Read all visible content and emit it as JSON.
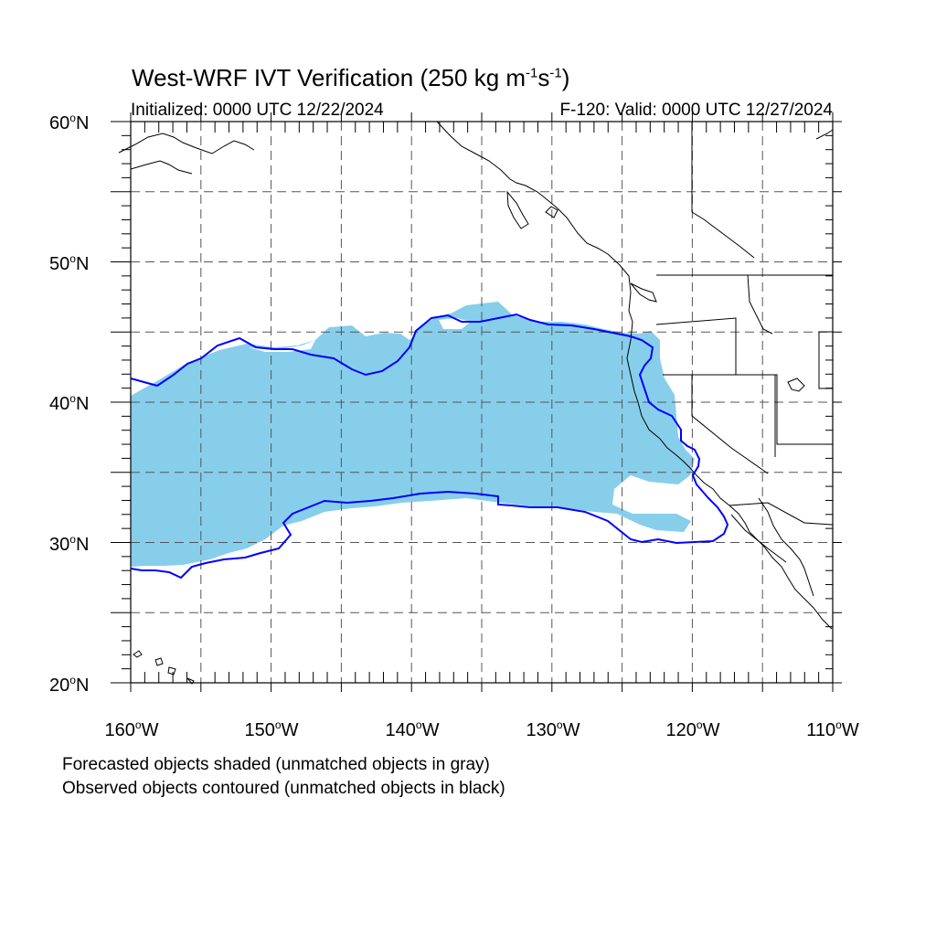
{
  "title": {
    "main": "West-WRF IVT Verification (250 kg m",
    "exp1": "-1",
    "mid": "s",
    "exp2": "-1",
    "end": ")"
  },
  "initialized": "Initialized: 0000 UTC 12/22/2024",
  "valid": "F-120: Valid: 0000 UTC 12/27/2024",
  "lat_labels": [
    {
      "value": "60",
      "hemi": "N"
    },
    {
      "value": "50",
      "hemi": "N"
    },
    {
      "value": "40",
      "hemi": "N"
    },
    {
      "value": "30",
      "hemi": "N"
    },
    {
      "value": "20",
      "hemi": "N"
    }
  ],
  "lon_labels": [
    {
      "value": "160",
      "hemi": "W"
    },
    {
      "value": "150",
      "hemi": "W"
    },
    {
      "value": "140",
      "hemi": "W"
    },
    {
      "value": "130",
      "hemi": "W"
    },
    {
      "value": "120",
      "hemi": "W"
    },
    {
      "value": "110",
      "hemi": "W"
    }
  ],
  "degree_symbol": "o",
  "captions": {
    "forecast": "Forecasted objects shaded (unmatched objects in gray)",
    "observed": "Observed objects contoured (unmatched objects in black)"
  },
  "map": {
    "lon_range": [
      -160,
      -110
    ],
    "lat_range": [
      20,
      60
    ],
    "grid_lons": [
      -155,
      -150,
      -145,
      -140,
      -135,
      -130,
      -125,
      -120,
      -115
    ],
    "grid_lats": [
      25,
      30,
      35,
      40,
      45,
      50,
      55
    ],
    "colors": {
      "forecast_fill": "#87ceeb",
      "observed_contour": "#0000ff",
      "coastline": "#000000",
      "grid": "#555555"
    }
  }
}
